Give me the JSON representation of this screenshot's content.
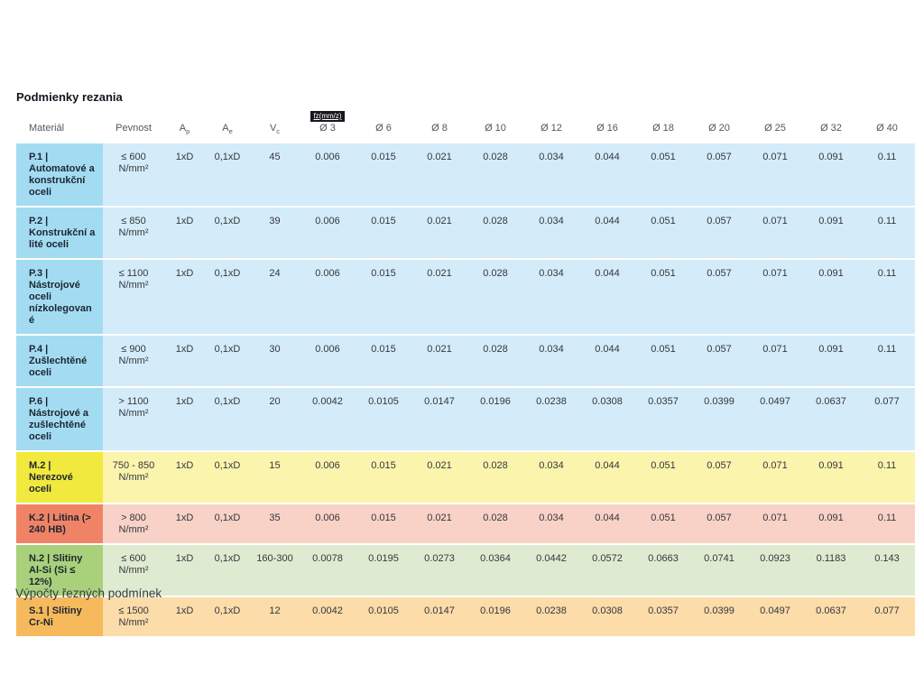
{
  "page": {
    "title": "Podmienky rezania",
    "footer_link": "Výpočty řezných podmínek"
  },
  "table": {
    "badge": "fz(mm/z)",
    "columns": [
      {
        "key": "material",
        "label": "Materiál"
      },
      {
        "key": "pevnost",
        "label": "Pevnost"
      },
      {
        "key": "ap",
        "label": "A",
        "sub": "p"
      },
      {
        "key": "ae",
        "label": "A",
        "sub": "e"
      },
      {
        "key": "vc",
        "label": "V",
        "sub": "c"
      },
      {
        "key": "d3",
        "label": "Ø 3",
        "badge": true
      },
      {
        "key": "d6",
        "label": "Ø 6"
      },
      {
        "key": "d8",
        "label": "Ø 8"
      },
      {
        "key": "d10",
        "label": "Ø 10"
      },
      {
        "key": "d12",
        "label": "Ø 12"
      },
      {
        "key": "d16",
        "label": "Ø 16"
      },
      {
        "key": "d18",
        "label": "Ø 18"
      },
      {
        "key": "d20",
        "label": "Ø 20"
      },
      {
        "key": "d25",
        "label": "Ø 25"
      },
      {
        "key": "d32",
        "label": "Ø 32"
      },
      {
        "key": "d40",
        "label": "Ø 40"
      }
    ],
    "group_colors": {
      "P": {
        "label": "#a3dcf2",
        "row": "#d4ecf9"
      },
      "M": {
        "label": "#f2e93e",
        "row": "#fbf4ad"
      },
      "K": {
        "label": "#f08366",
        "row": "#f9d2c7"
      },
      "N": {
        "label": "#a9d07b",
        "row": "#dfebd1"
      },
      "S": {
        "label": "#f6b95b",
        "row": "#fcdca9"
      }
    },
    "rows": [
      {
        "group": "P",
        "material": "P.1 | Automatové a konstrukční oceli",
        "pevnost": "≤ 600 N/mm²",
        "ap": "1xD",
        "ae": "0,1xD",
        "vc": "45",
        "values": [
          "0.006",
          "0.015",
          "0.021",
          "0.028",
          "0.034",
          "0.044",
          "0.051",
          "0.057",
          "0.071",
          "0.091",
          "0.11"
        ]
      },
      {
        "group": "P",
        "material": "P.2 | Konstrukční a lité oceli",
        "pevnost": "≤ 850 N/mm²",
        "ap": "1xD",
        "ae": "0,1xD",
        "vc": "39",
        "values": [
          "0.006",
          "0.015",
          "0.021",
          "0.028",
          "0.034",
          "0.044",
          "0.051",
          "0.057",
          "0.071",
          "0.091",
          "0.11"
        ]
      },
      {
        "group": "P",
        "material": "P.3 | Nástrojové oceli nízkolegované",
        "pevnost": "≤ 1100 N/mm²",
        "ap": "1xD",
        "ae": "0,1xD",
        "vc": "24",
        "values": [
          "0.006",
          "0.015",
          "0.021",
          "0.028",
          "0.034",
          "0.044",
          "0.051",
          "0.057",
          "0.071",
          "0.091",
          "0.11"
        ]
      },
      {
        "group": "P",
        "material": "P.4 | Zušlechtěné oceli",
        "pevnost": "≤ 900 N/mm²",
        "ap": "1xD",
        "ae": "0,1xD",
        "vc": "30",
        "values": [
          "0.006",
          "0.015",
          "0.021",
          "0.028",
          "0.034",
          "0.044",
          "0.051",
          "0.057",
          "0.071",
          "0.091",
          "0.11"
        ]
      },
      {
        "group": "P",
        "material": "P.6 | Nástrojové a zušlechtěné oceli",
        "pevnost": "> 1100 N/mm²",
        "ap": "1xD",
        "ae": "0,1xD",
        "vc": "20",
        "values": [
          "0.0042",
          "0.0105",
          "0.0147",
          "0.0196",
          "0.0238",
          "0.0308",
          "0.0357",
          "0.0399",
          "0.0497",
          "0.0637",
          "0.077"
        ]
      },
      {
        "group": "M",
        "material": "M.2 | Nerezové oceli",
        "pevnost": "750 - 850 N/mm²",
        "ap": "1xD",
        "ae": "0,1xD",
        "vc": "15",
        "values": [
          "0.006",
          "0.015",
          "0.021",
          "0.028",
          "0.034",
          "0.044",
          "0.051",
          "0.057",
          "0.071",
          "0.091",
          "0.11"
        ]
      },
      {
        "group": "K",
        "material": "K.2 | Litina (> 240 HB)",
        "pevnost": "> 800 N/mm²",
        "ap": "1xD",
        "ae": "0,1xD",
        "vc": "35",
        "values": [
          "0.006",
          "0.015",
          "0.021",
          "0.028",
          "0.034",
          "0.044",
          "0.051",
          "0.057",
          "0.071",
          "0.091",
          "0.11"
        ]
      },
      {
        "group": "N",
        "material": "N.2 | Slitiny Al-Si (Si ≤ 12%)",
        "pevnost": "≤ 600 N/mm²",
        "ap": "1xD",
        "ae": "0,1xD",
        "vc": "160-300",
        "values": [
          "0.0078",
          "0.0195",
          "0.0273",
          "0.0364",
          "0.0442",
          "0.0572",
          "0.0663",
          "0.0741",
          "0.0923",
          "0.1183",
          "0.143"
        ]
      },
      {
        "group": "S",
        "material": "S.1 | Slitiny Cr-Ni",
        "pevnost": "≤ 1500 N/mm²",
        "ap": "1xD",
        "ae": "0,1xD",
        "vc": "12",
        "values": [
          "0.0042",
          "0.0105",
          "0.0147",
          "0.0196",
          "0.0238",
          "0.0308",
          "0.0357",
          "0.0399",
          "0.0497",
          "0.0637",
          "0.077"
        ]
      }
    ]
  }
}
